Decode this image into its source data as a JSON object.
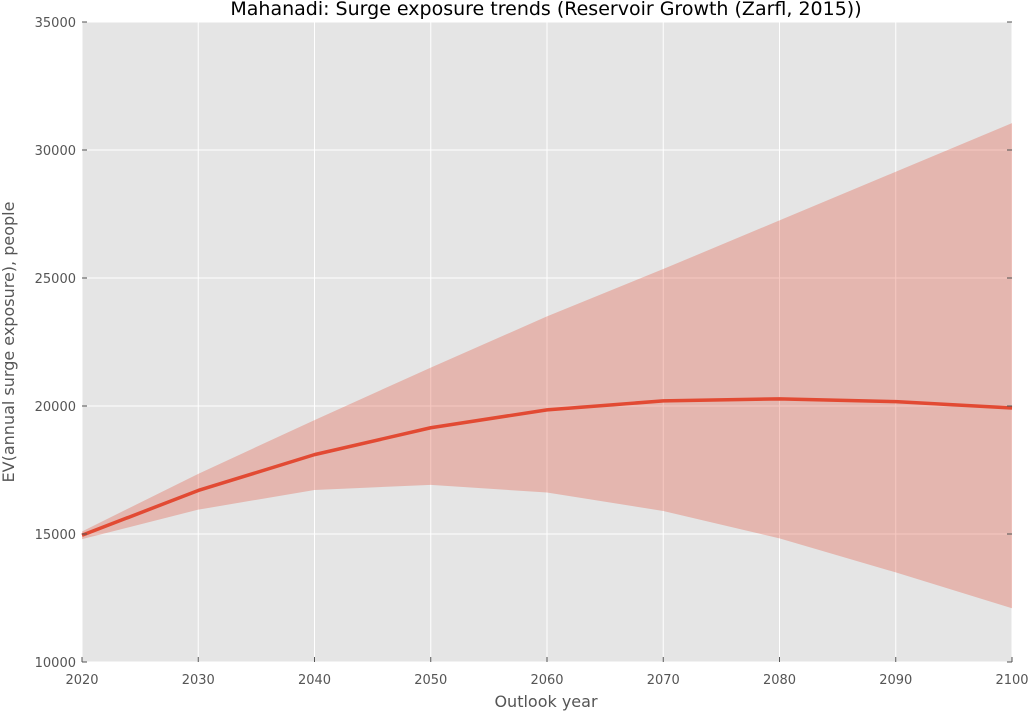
{
  "chart_data": {
    "type": "area",
    "title": "Mahanadi: Surge exposure trends (Reservoir Growth (Zarfl, 2015))",
    "xlabel": "Outlook year",
    "ylabel": "EV(annual surge exposure), people",
    "xlim": [
      2020,
      2100
    ],
    "ylim": [
      10000,
      35000
    ],
    "xticks": [
      "2020",
      "2030",
      "2040",
      "2050",
      "2060",
      "2070",
      "2080",
      "2090",
      "2100"
    ],
    "yticks": [
      "10000",
      "15000",
      "20000",
      "25000",
      "30000",
      "35000"
    ],
    "grid": true,
    "background": "#e5e5e5",
    "colors": {
      "line": "#e24a33",
      "band": "#e24a33"
    },
    "x": [
      2020,
      2030,
      2040,
      2050,
      2060,
      2070,
      2080,
      2090,
      2100
    ],
    "series": [
      {
        "values": [
          14950,
          16700,
          18100,
          19150,
          19850,
          20200,
          20280,
          20170,
          19920
        ],
        "lower": [
          14800,
          15950,
          16720,
          16920,
          16620,
          15900,
          14830,
          13500,
          12100
        ],
        "upper": [
          15100,
          17350,
          19450,
          21500,
          23500,
          25350,
          27250,
          29150,
          31050
        ]
      }
    ]
  }
}
